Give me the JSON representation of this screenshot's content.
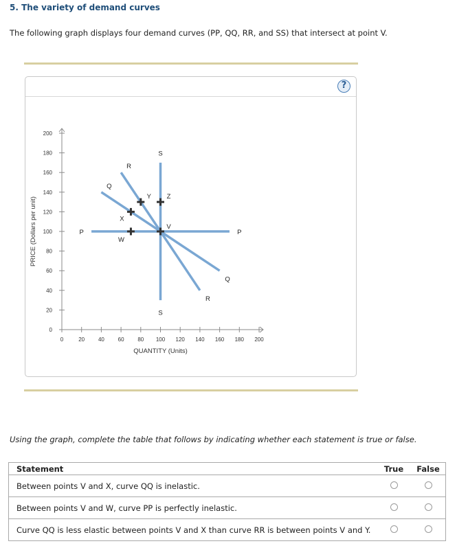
{
  "header": {
    "title": "5. The variety of demand curves",
    "intro": "The following graph displays four demand curves (PP, QQ, RR, and SS) that intersect at point V."
  },
  "graph": {
    "help_label": "?",
    "help_icon": "question-circle-icon"
  },
  "chart_data": {
    "type": "line",
    "title": "",
    "xlabel": "QUANTITY (Units)",
    "ylabel": "PRICE (Dollars per unit)",
    "xlim": [
      0,
      200
    ],
    "ylim": [
      0,
      200
    ],
    "xticks": [
      0,
      20,
      40,
      60,
      80,
      100,
      120,
      140,
      160,
      180,
      200
    ],
    "yticks": [
      0,
      20,
      40,
      60,
      80,
      100,
      120,
      140,
      160,
      180,
      200
    ],
    "grid": false,
    "line_color": "#7aa7d3",
    "series": [
      {
        "name": "PP",
        "points": [
          [
            30,
            100
          ],
          [
            170,
            100
          ]
        ],
        "labels": [
          {
            "text": "P",
            "x": 20,
            "y": 100
          },
          {
            "text": "P",
            "x": 180,
            "y": 100
          }
        ]
      },
      {
        "name": "QQ",
        "points": [
          [
            40,
            140
          ],
          [
            160,
            60
          ]
        ],
        "labels": [
          {
            "text": "Q",
            "x": 48,
            "y": 147
          },
          {
            "text": "Q",
            "x": 168,
            "y": 52
          }
        ]
      },
      {
        "name": "RR",
        "points": [
          [
            60,
            160
          ],
          [
            140,
            40
          ]
        ],
        "labels": [
          {
            "text": "R",
            "x": 68,
            "y": 167
          },
          {
            "text": "R",
            "x": 148,
            "y": 32
          }
        ]
      },
      {
        "name": "SS",
        "points": [
          [
            100,
            170
          ],
          [
            100,
            30
          ]
        ],
        "labels": [
          {
            "text": "S",
            "x": 100,
            "y": 180
          },
          {
            "text": "S",
            "x": 100,
            "y": 18
          }
        ]
      }
    ],
    "points": [
      {
        "name": "V",
        "x": 100,
        "y": 100
      },
      {
        "name": "W",
        "x": 70,
        "y": 100
      },
      {
        "name": "X",
        "x": 70,
        "y": 120
      },
      {
        "name": "Y",
        "x": 80,
        "y": 130
      },
      {
        "name": "Z",
        "x": 100,
        "y": 130
      }
    ]
  },
  "question": {
    "instruction": "Using the graph, complete the table that follows by indicating whether each statement is true or false.",
    "columns": [
      "Statement",
      "True",
      "False"
    ],
    "rows": [
      {
        "statement": "Between points V and X, curve QQ is inelastic.",
        "true_selected": false,
        "false_selected": false
      },
      {
        "statement": "Between points V and W, curve PP is perfectly inelastic.",
        "true_selected": false,
        "false_selected": false
      },
      {
        "statement": "Curve QQ is less elastic between points V and X than curve RR is between points V and Y.",
        "true_selected": false,
        "false_selected": false
      }
    ]
  }
}
